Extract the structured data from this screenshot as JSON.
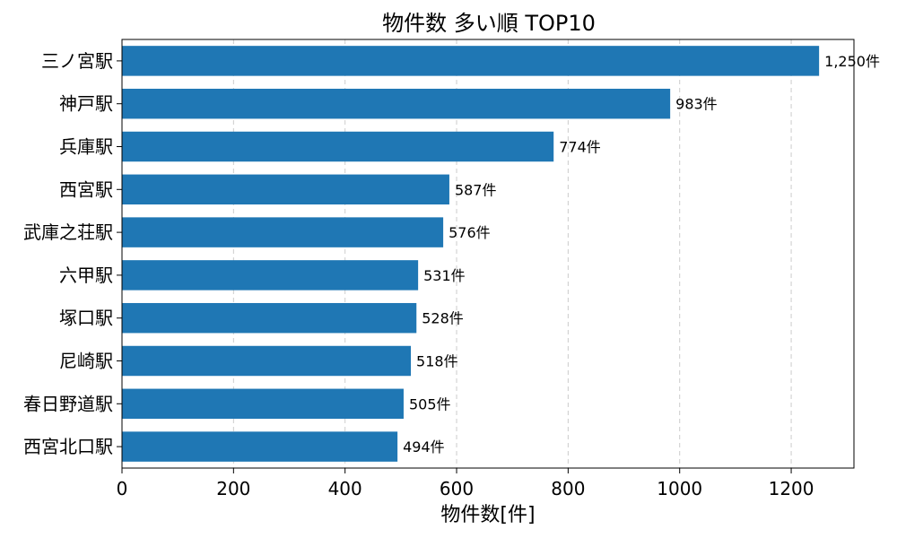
{
  "chart_data": {
    "type": "bar",
    "orientation": "horizontal",
    "title": "物件数 多い順 TOP10",
    "xlabel": "物件数[件]",
    "ylabel": "",
    "categories": [
      "三ノ宮駅",
      "神戸駅",
      "兵庫駅",
      "西宮駅",
      "武庫之荘駅",
      "六甲駅",
      "塚口駅",
      "尼崎駅",
      "春日野道駅",
      "西宮北口駅"
    ],
    "values": [
      1250,
      983,
      774,
      587,
      576,
      531,
      528,
      518,
      505,
      494
    ],
    "data_labels": [
      "1,250件",
      "983件",
      "774件",
      "587件",
      "576件",
      "531件",
      "528件",
      "518件",
      "505件",
      "494件"
    ],
    "xlim": [
      0,
      1312.5
    ],
    "xticks": [
      0,
      200,
      400,
      600,
      800,
      1000,
      1200
    ],
    "grid": "x",
    "bar_color": "#1f77b4"
  }
}
